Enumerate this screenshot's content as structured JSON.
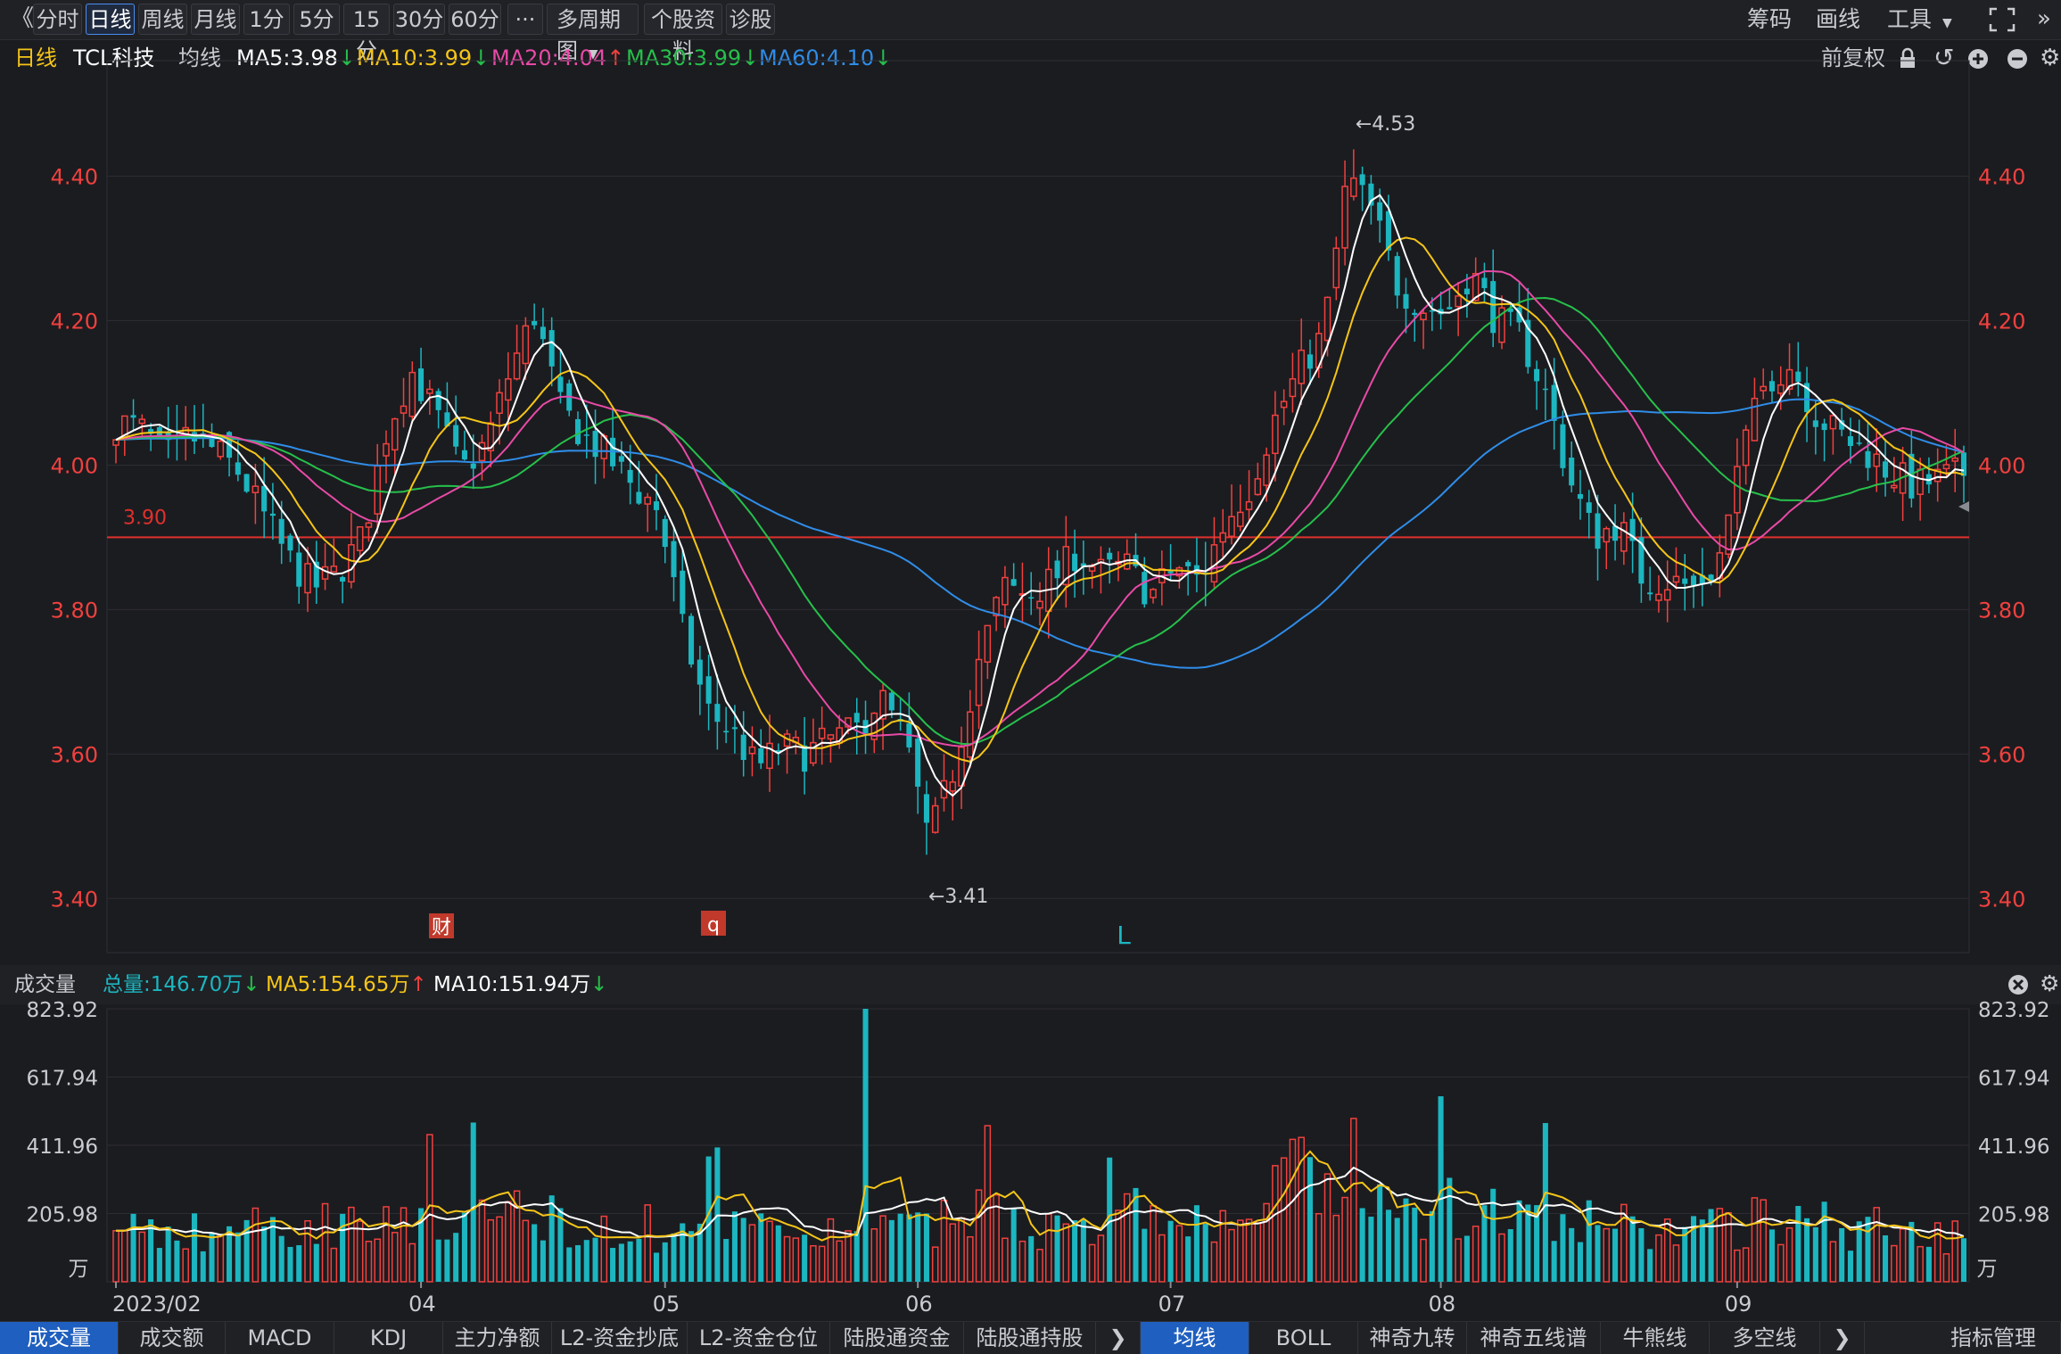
{
  "toolbar": {
    "back_glyph": "《",
    "periods": [
      "分时",
      "日线",
      "周线",
      "月线",
      "1分",
      "5分",
      "15分",
      "30分",
      "60分"
    ],
    "more_label": "···",
    "multi_label": "多周期图",
    "stock_info_label": "个股资料",
    "diag_label": "诊股",
    "chips_label": "筹码",
    "draw_label": "画线",
    "tools_label": "工具"
  },
  "info": {
    "period": "日线",
    "stock": "TCL科技",
    "ma_label": "均线",
    "ma5": "MA5:3.98",
    "ma10": "MA10:3.99",
    "ma20": "MA20:4.04",
    "ma30": "MA30:3.99",
    "ma60": "MA60:4.10",
    "adjust": "前复权"
  },
  "volume_header": {
    "title": "成交量",
    "total": "总量:146.70万",
    "ma5": "MA5:154.65万",
    "ma10": "MA10:151.94万"
  },
  "colors": {
    "up": "#f0413e",
    "down": "#1cb6c0",
    "ma5": "#ffffff",
    "ma10": "#f5c518",
    "ma20": "#e84aa6",
    "ma30": "#26c04b",
    "ma60": "#2f8de8",
    "ref": "#e0302c"
  },
  "chart_data": {
    "type": "candlestick",
    "price_ticks": [
      "4.40",
      "4.20",
      "4.00",
      "3.80",
      "3.60",
      "3.40"
    ],
    "price_tick_values": [
      4.4,
      4.2,
      4.0,
      3.8,
      3.6,
      3.4
    ],
    "price_range": [
      3.325,
      4.56
    ],
    "ref_line_value": 3.9,
    "ref_line_label": "3.90",
    "high_label": "←4.53",
    "low_label": "←3.41",
    "event_marks": [
      "财",
      "q",
      "L"
    ],
    "volume_ticks": [
      "823.92",
      "617.94",
      "411.96",
      "205.98"
    ],
    "volume_tick_values": [
      823.92,
      617.94,
      411.96,
      205.98
    ],
    "volume_unit": "万",
    "volume_max": 823.92,
    "date_labels": [
      "2023/02",
      "04",
      "05",
      "06",
      "07",
      "08",
      "09"
    ],
    "date_index": [
      0,
      35,
      63,
      92,
      121,
      152,
      186
    ],
    "bar_count": 213,
    "price_anchors": [
      [
        0,
        4.06
      ],
      [
        4,
        4.05
      ],
      [
        8,
        4.01
      ],
      [
        12,
        4.04
      ],
      [
        16,
        4.02
      ],
      [
        20,
        3.99
      ],
      [
        24,
        3.93
      ],
      [
        28,
        3.87
      ],
      [
        32,
        3.83
      ],
      [
        36,
        3.85
      ],
      [
        40,
        3.9
      ],
      [
        44,
        4.05
      ],
      [
        48,
        4.13
      ],
      [
        52,
        4.07
      ],
      [
        56,
        3.99
      ],
      [
        60,
        4.03
      ],
      [
        64,
        4.13
      ],
      [
        68,
        4.21
      ],
      [
        72,
        4.08
      ],
      [
        76,
        4.04
      ],
      [
        80,
        4.01
      ],
      [
        84,
        3.97
      ],
      [
        88,
        3.94
      ],
      [
        92,
        3.77
      ],
      [
        96,
        3.66
      ],
      [
        100,
        3.63
      ],
      [
        104,
        3.58
      ],
      [
        108,
        3.61
      ],
      [
        112,
        3.6
      ],
      [
        116,
        3.62
      ],
      [
        120,
        3.63
      ],
      [
        124,
        3.68
      ],
      [
        128,
        3.62
      ],
      [
        132,
        3.48
      ],
      [
        136,
        3.58
      ],
      [
        140,
        3.73
      ],
      [
        144,
        3.83
      ],
      [
        148,
        3.82
      ],
      [
        152,
        3.84
      ],
      [
        156,
        3.88
      ],
      [
        160,
        3.85
      ],
      [
        164,
        3.86
      ],
      [
        168,
        3.82
      ],
      [
        172,
        3.86
      ],
      [
        176,
        3.84
      ],
      [
        180,
        3.92
      ],
      [
        184,
        3.97
      ],
      [
        188,
        4.06
      ],
      [
        192,
        4.13
      ],
      [
        196,
        4.18
      ],
      [
        200,
        4.4
      ],
      [
        204,
        4.35
      ],
      [
        208,
        4.25
      ],
      [
        212,
        4.22
      ],
      [
        216,
        4.21
      ],
      [
        220,
        4.27
      ],
      [
        224,
        4.2
      ],
      [
        228,
        4.18
      ],
      [
        232,
        4.1
      ],
      [
        236,
        3.98
      ],
      [
        240,
        3.9
      ],
      [
        244,
        3.92
      ],
      [
        248,
        3.84
      ],
      [
        252,
        3.84
      ],
      [
        256,
        3.83
      ],
      [
        260,
        3.86
      ],
      [
        264,
        4.02
      ],
      [
        268,
        4.12
      ],
      [
        272,
        4.14
      ],
      [
        276,
        4.07
      ],
      [
        280,
        4.04
      ],
      [
        284,
        4.02
      ],
      [
        288,
        3.99
      ],
      [
        292,
        3.97
      ],
      [
        296,
        3.98
      ],
      [
        300,
        3.99
      ]
    ],
    "volume_anchors": [
      [
        0,
        190
      ],
      [
        10,
        140
      ],
      [
        20,
        170
      ],
      [
        30,
        160
      ],
      [
        38,
        190
      ],
      [
        42,
        230
      ],
      [
        50,
        160
      ],
      [
        60,
        180
      ],
      [
        66,
        230
      ],
      [
        72,
        180
      ],
      [
        80,
        170
      ],
      [
        90,
        155
      ],
      [
        100,
        150
      ],
      [
        110,
        160
      ],
      [
        120,
        140
      ],
      [
        128,
        150
      ],
      [
        136,
        180
      ],
      [
        140,
        230
      ],
      [
        146,
        210
      ],
      [
        152,
        160
      ],
      [
        160,
        140
      ],
      [
        166,
        230
      ],
      [
        172,
        170
      ],
      [
        180,
        160
      ],
      [
        186,
        230
      ],
      [
        190,
        330
      ],
      [
        196,
        260
      ],
      [
        202,
        210
      ],
      [
        210,
        200
      ],
      [
        216,
        220
      ],
      [
        226,
        200
      ],
      [
        236,
        170
      ],
      [
        246,
        170
      ],
      [
        256,
        150
      ],
      [
        266,
        180
      ],
      [
        276,
        180
      ],
      [
        286,
        160
      ],
      [
        300,
        150
      ]
    ]
  }
}
